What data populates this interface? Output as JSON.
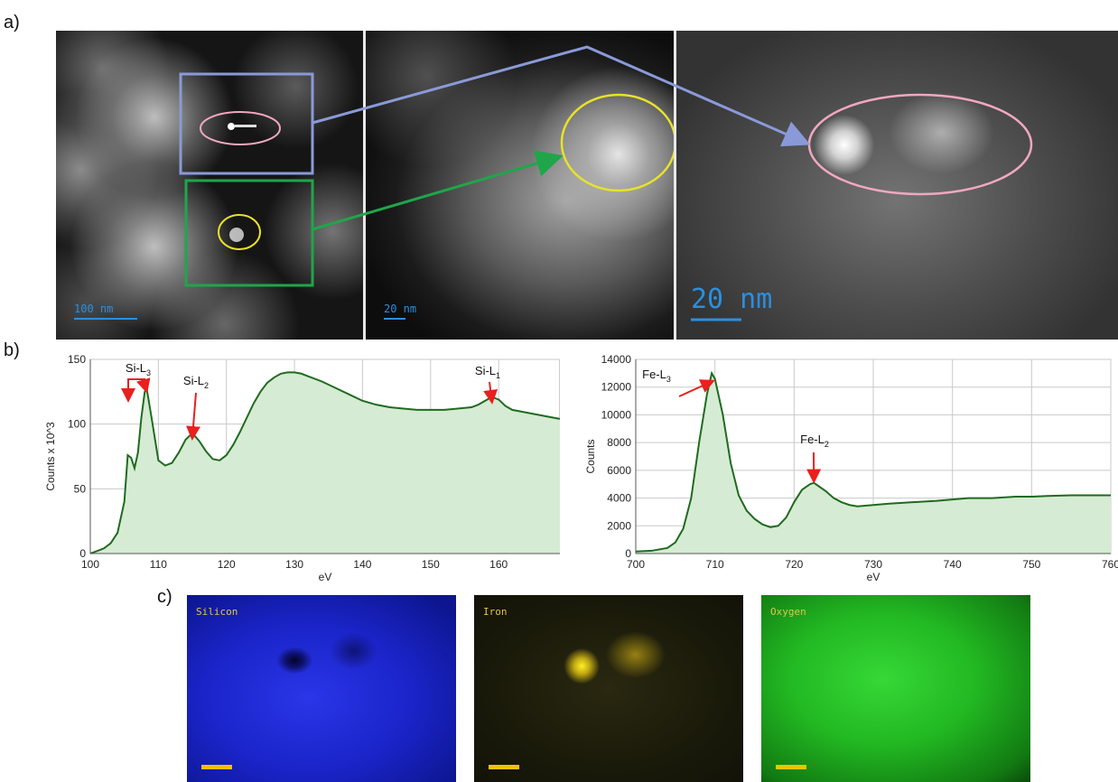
{
  "panel_labels": {
    "a": "a)",
    "b": "b)",
    "c": "c)"
  },
  "em_images": {
    "left_scale": "100 nm",
    "middle_scale": "20 nm",
    "right_scale": "20 nm"
  },
  "colors": {
    "spectrum_line": "#1f6b1f",
    "spectrum_fill": "#d6ebd3",
    "arrow": "#e8201e",
    "blue_box": "#8a9ad8",
    "green_box": "#1fa64a",
    "yellow_circle": "#e8e22a",
    "pink_ellipse": "#f0a8c0",
    "scalebar": "#2a8fe0"
  },
  "elemental_maps": [
    {
      "label": "Silicon",
      "color": "#1a2bd8"
    },
    {
      "label": "Iron",
      "color": "#e8d21a"
    },
    {
      "label": "Oxygen",
      "color": "#1fd21f"
    }
  ],
  "chart_data": [
    {
      "type": "area",
      "title": "",
      "xlabel": "eV",
      "ylabel": "Counts x 10^3",
      "xlim": [
        100,
        169
      ],
      "ylim": [
        0,
        150
      ],
      "xticks": [
        100,
        110,
        120,
        130,
        140,
        150,
        160
      ],
      "yticks": [
        0,
        50,
        100,
        150
      ],
      "grid": true,
      "series": [
        {
          "x": [
            100,
            101,
            102,
            103,
            104,
            105,
            105.5,
            106,
            106.5,
            107,
            107.5,
            108,
            108.3,
            109,
            110,
            111,
            112,
            113,
            114,
            115,
            116,
            117,
            118,
            119,
            120,
            121,
            122,
            123,
            124,
            125,
            126,
            127,
            128,
            129,
            130,
            131,
            132,
            134,
            136,
            138,
            140,
            142,
            144,
            146,
            148,
            150,
            152,
            154,
            156,
            157,
            158,
            159,
            160,
            161,
            162,
            164,
            166,
            168,
            169
          ],
          "y": [
            0,
            2,
            4,
            8,
            16,
            40,
            76,
            74,
            66,
            78,
            105,
            125,
            127,
            105,
            72,
            68,
            70,
            78,
            88,
            93,
            87,
            79,
            73,
            72,
            76,
            84,
            94,
            105,
            116,
            125,
            132,
            136,
            139,
            140,
            140,
            139,
            137,
            133,
            128,
            123,
            118,
            115,
            113,
            112,
            111,
            111,
            111,
            112,
            113,
            115,
            118,
            121,
            119,
            114,
            111,
            109,
            107,
            105,
            104
          ]
        }
      ],
      "annotations": [
        {
          "text": "Si-L",
          "subscript": "3",
          "x": 108
        },
        {
          "text": "Si-L",
          "subscript": "2",
          "x": 115
        },
        {
          "text": "Si-L",
          "subscript": "1",
          "x": 159
        }
      ]
    },
    {
      "type": "area",
      "title": "",
      "xlabel": "eV",
      "ylabel": "Counts",
      "xlim": [
        700,
        760
      ],
      "ylim": [
        0,
        14000
      ],
      "xticks": [
        700,
        710,
        720,
        730,
        740,
        750,
        760
      ],
      "yticks": [
        0,
        2000,
        4000,
        6000,
        8000,
        10000,
        12000,
        14000
      ],
      "grid": true,
      "series": [
        {
          "x": [
            700,
            702,
            704,
            705,
            706,
            707,
            708,
            709,
            709.6,
            710,
            711,
            712,
            713,
            714,
            715,
            716,
            717,
            718,
            719,
            720,
            721,
            722,
            722.5,
            723,
            724,
            725,
            726,
            727,
            728,
            730,
            732,
            735,
            738,
            740,
            742,
            745,
            748,
            750,
            752,
            755,
            758,
            760
          ],
          "y": [
            150,
            200,
            400,
            800,
            1800,
            4000,
            8000,
            11500,
            13000,
            12600,
            10000,
            6500,
            4200,
            3100,
            2500,
            2100,
            1900,
            2000,
            2600,
            3700,
            4600,
            5000,
            5100,
            4900,
            4500,
            4000,
            3700,
            3500,
            3400,
            3500,
            3600,
            3700,
            3800,
            3900,
            4000,
            4000,
            4100,
            4100,
            4150,
            4200,
            4200,
            4200
          ]
        }
      ],
      "annotations": [
        {
          "text": "Fe-L",
          "subscript": "3",
          "x": 709.6
        },
        {
          "text": "Fe-L",
          "subscript": "2",
          "x": 722.5
        }
      ]
    }
  ]
}
